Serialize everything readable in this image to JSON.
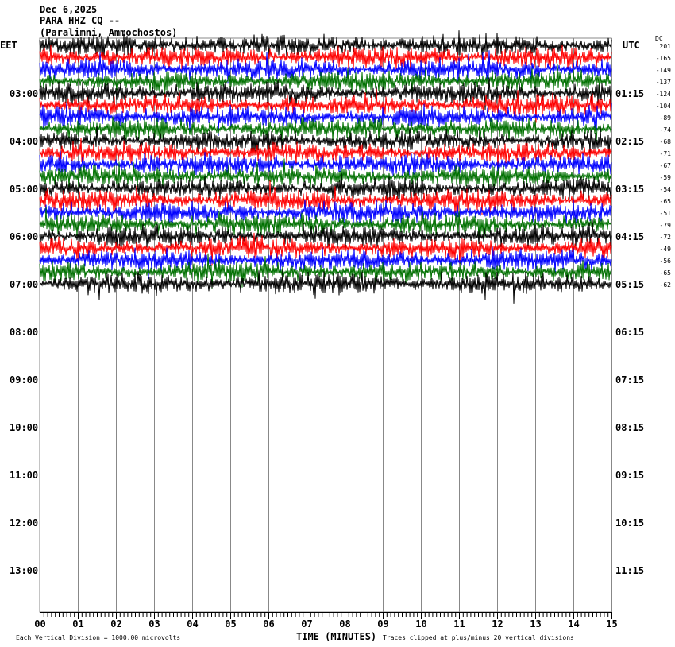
{
  "header": {
    "date": "Dec 6,2025",
    "station": "PARA HHZ CQ --",
    "location": "(Paralimni, Ammochostos)"
  },
  "chart_data": {
    "type": "line",
    "subtype": "helicorder",
    "left_timezone": "EET",
    "right_timezone": "UTC",
    "dc_header": "DC",
    "left_time_labels": [
      "03:00",
      "04:00",
      "05:00",
      "06:00",
      "07:00",
      "08:00",
      "09:00",
      "10:00",
      "11:00",
      "12:00",
      "13:00"
    ],
    "right_time_labels": [
      "01:15",
      "02:15",
      "03:15",
      "04:15",
      "05:15",
      "06:15",
      "07:15",
      "08:15",
      "09:15",
      "10:15",
      "11:15"
    ],
    "dc_offsets": [
      201,
      -165,
      -149,
      -137,
      -124,
      -104,
      -89,
      -74,
      -68,
      -71,
      -67,
      -59,
      -54,
      -65,
      -51,
      -79,
      -72,
      -49,
      -56,
      -65,
      -62
    ],
    "trace_colors": [
      "#000000",
      "#ff0000",
      "#0000ff",
      "#007000"
    ],
    "traces_per_hour": 4,
    "total_rows": 48,
    "x_ticks": [
      "00",
      "01",
      "02",
      "03",
      "04",
      "05",
      "06",
      "07",
      "08",
      "09",
      "10",
      "11",
      "12",
      "13",
      "14",
      "15"
    ],
    "xlabel": "TIME (MINUTES)",
    "xlim": [
      0,
      15
    ],
    "grid": true,
    "scale_note": "Each Vertical Division = 1000.00 microvolts",
    "clip_note": "Traces clipped at plus/minus 20 vertical divisions"
  }
}
